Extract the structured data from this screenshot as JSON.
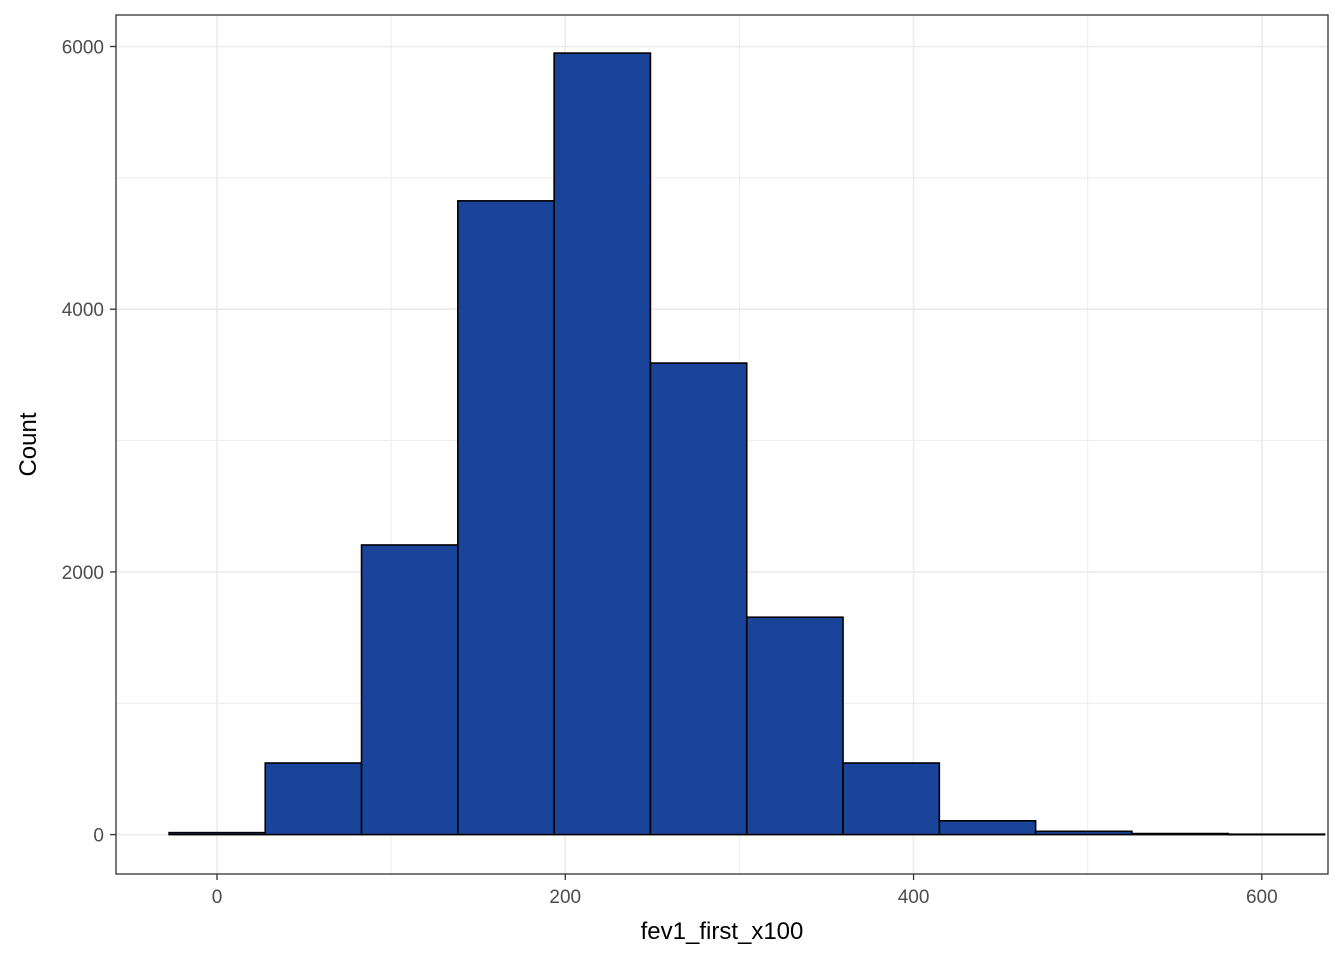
{
  "chart_data": {
    "type": "bar",
    "subtype": "histogram",
    "title": "",
    "xlabel": "fev1_first_x100",
    "ylabel": "Count",
    "xlim": [
      -58,
      638
    ],
    "ylim": [
      -300,
      6240
    ],
    "x_ticks_major": [
      0,
      200,
      400,
      600
    ],
    "x_ticks_minor": [
      100,
      300,
      500
    ],
    "y_ticks_major": [
      0,
      2000,
      4000,
      6000
    ],
    "y_ticks_minor": [
      1000,
      3000,
      5000
    ],
    "x_tick_labels": [
      "0",
      "200",
      "400",
      "600"
    ],
    "y_tick_labels": [
      "0",
      "2000",
      "4000",
      "6000"
    ],
    "grid": true,
    "fill_color": "#1a4499",
    "edge_color": "#000000",
    "bins": [
      {
        "x0": -27.5,
        "x1": 27.7,
        "count": 15
      },
      {
        "x0": 27.7,
        "x1": 83.0,
        "count": 545
      },
      {
        "x0": 83.0,
        "x1": 138.3,
        "count": 2205
      },
      {
        "x0": 138.3,
        "x1": 193.6,
        "count": 4825
      },
      {
        "x0": 193.6,
        "x1": 248.9,
        "count": 5950
      },
      {
        "x0": 248.9,
        "x1": 304.2,
        "count": 3590
      },
      {
        "x0": 304.2,
        "x1": 359.5,
        "count": 1655
      },
      {
        "x0": 359.5,
        "x1": 414.8,
        "count": 545
      },
      {
        "x0": 414.8,
        "x1": 470.1,
        "count": 105
      },
      {
        "x0": 470.1,
        "x1": 525.4,
        "count": 25
      },
      {
        "x0": 525.4,
        "x1": 580.7,
        "count": 8
      },
      {
        "x0": 580.7,
        "x1": 636.0,
        "count": 3
      }
    ]
  }
}
